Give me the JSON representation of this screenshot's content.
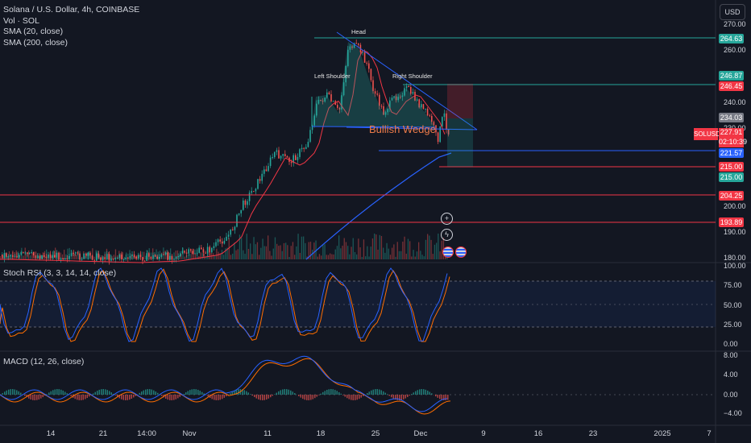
{
  "header": {
    "title": "Solana / U.S. Dollar, 4h, COINBASE",
    "indicators": [
      "Vol · SOL",
      "SMA (20, close)",
      "SMA (200, close)"
    ]
  },
  "currency_button": "USD",
  "price_axis": {
    "ticks": [
      "270.00",
      "260.00",
      "240.00",
      "230.00",
      "200.00",
      "190.00",
      "180.00"
    ]
  },
  "price_tags": [
    {
      "label": "264.63",
      "color": "#26a69a"
    },
    {
      "label": "246.87",
      "color": "#26a69a"
    },
    {
      "label": "246.45",
      "color": "#f23645"
    },
    {
      "label": "234.03",
      "color": "#787b86"
    },
    {
      "label": "221.57",
      "color": "#2962ff"
    },
    {
      "label": "215.00",
      "color": "#f23645"
    },
    {
      "label": "215.00",
      "color": "#26a69a"
    },
    {
      "label": "204.25",
      "color": "#f23645"
    },
    {
      "label": "193.89",
      "color": "#f23645"
    }
  ],
  "current_price": {
    "symbol": "SOLUSD",
    "price": "227.91",
    "countdown": "02:10:39"
  },
  "pattern_labels": {
    "head": "Head",
    "left_shoulder": "Left Shoulder",
    "right_shoulder": "Right Shoulder",
    "wedge": "Bullish Wedge"
  },
  "stoch_rsi": {
    "title": "Stoch RSI (3, 3, 14, 14, close)",
    "ticks": [
      "100.00",
      "75.00",
      "50.00",
      "25.00",
      "0.00"
    ],
    "colors": {
      "k": "#2962ff",
      "d": "#ff6d00"
    }
  },
  "macd": {
    "title": "MACD (12, 26, close)",
    "ticks": [
      "8.00",
      "4.00",
      "0.00",
      "−4.00"
    ],
    "colors": {
      "macd": "#2962ff",
      "signal": "#ff6d00"
    }
  },
  "time_axis": [
    "14",
    "21",
    "14:00",
    "Nov",
    "11",
    "18",
    "25",
    "Dec",
    "9",
    "16",
    "23",
    "2025",
    "7"
  ],
  "colors": {
    "bull": "#26a69a",
    "bear": "#ef5350",
    "sma20": "#f23645",
    "sma200": "#2962ff"
  },
  "icons": {
    "alert": "plus-circle-icon",
    "flash": "lightning-icon",
    "event": "us-flag-icon"
  }
}
